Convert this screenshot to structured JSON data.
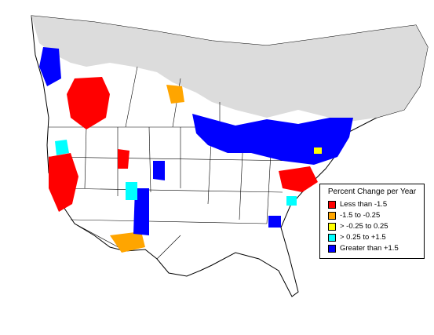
{
  "legend": {
    "title": "Percent Change per Year",
    "items": [
      {
        "label": "Less than -1.5",
        "color": "#ff0000"
      },
      {
        "label": "-1.5 to -0.25",
        "color": "#ffa500"
      },
      {
        "label": "> -0.25 to 0.25",
        "color": "#ffff00"
      },
      {
        "label": "> 0.25 to +1.5",
        "color": "#00ffff"
      },
      {
        "label": "Greater than +1.5",
        "color": "#0000ff"
      }
    ]
  },
  "colors": {
    "no_data_region": "#dcdcdc",
    "land": "#ffffff",
    "boundary": "#000000"
  }
}
